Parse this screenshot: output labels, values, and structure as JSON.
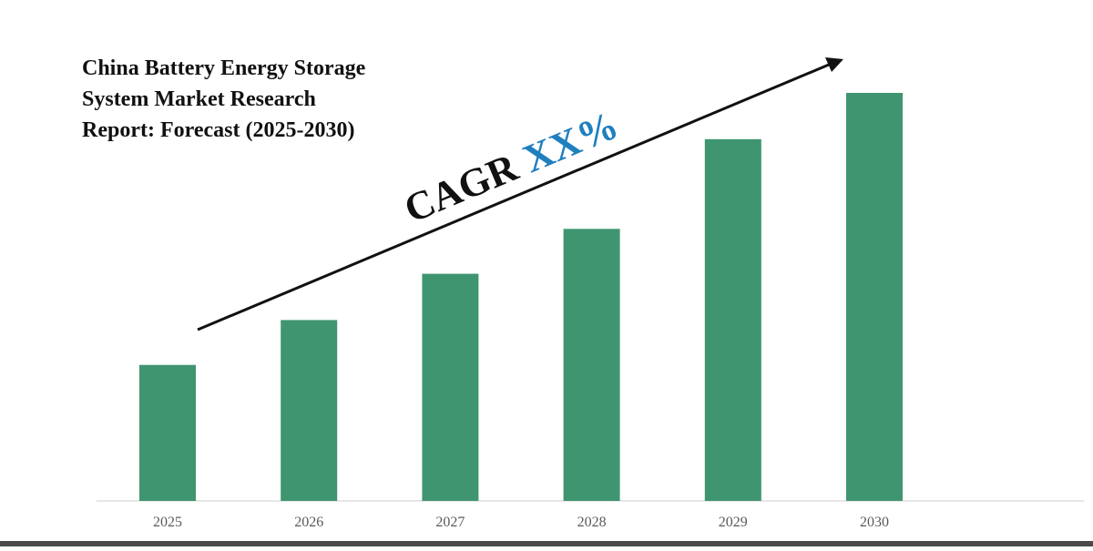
{
  "chart_data": {
    "type": "bar",
    "title_lines": [
      "China Battery Energy Storage",
      "System Market Research",
      "Report: Forecast (2025-2030)"
    ],
    "categories": [
      "2025",
      "2026",
      "2027",
      "2028",
      "2029",
      "2030"
    ],
    "values": [
      1.0,
      1.33,
      1.67,
      2.0,
      2.66,
      3.0
    ],
    "ylim": [
      0,
      3.0
    ],
    "xlabel": "",
    "ylabel": "",
    "grid": false,
    "annotation": {
      "prefix": "CAGR",
      "value": "XX%"
    },
    "colors": {
      "bar": "#3f9570",
      "annotation_prefix": "#111111",
      "annotation_value": "#1f7fbf",
      "axis": "#dddddd",
      "arrow": "#111111"
    }
  }
}
